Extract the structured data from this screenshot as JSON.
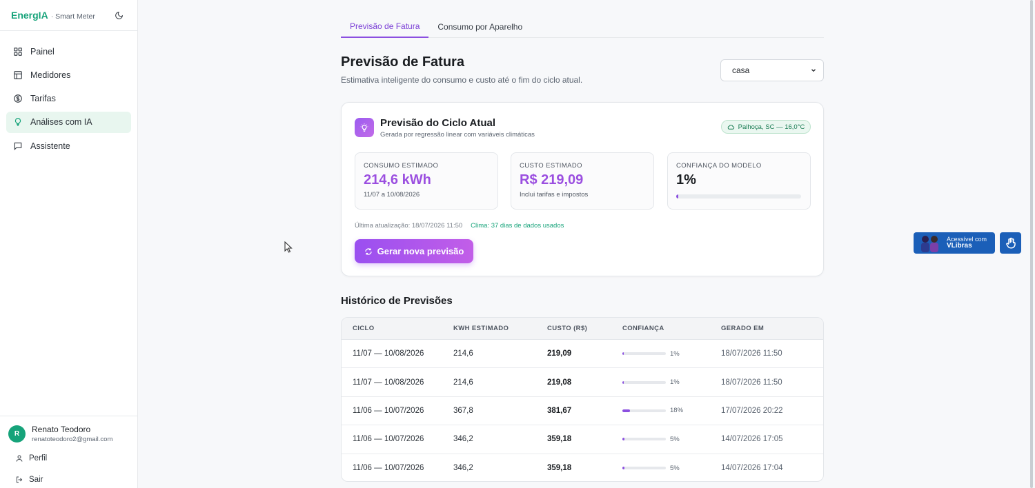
{
  "sidebar": {
    "brand": "EnergIA",
    "brand_sub": "· Smart Meter",
    "items": [
      {
        "label": "Painel",
        "icon": "grid-icon"
      },
      {
        "label": "Medidores",
        "icon": "table-icon"
      },
      {
        "label": "Tarifas",
        "icon": "dollar-circle-icon"
      },
      {
        "label": "Análises com IA",
        "icon": "lightbulb-icon",
        "active": true
      },
      {
        "label": "Assistente",
        "icon": "chat-icon"
      }
    ],
    "user": {
      "initial": "R",
      "name": "Renato Teodoro",
      "email": "renatoteodoro2@gmail.com"
    },
    "profile_label": "Perfil",
    "logout_label": "Sair"
  },
  "tabs": [
    {
      "label": "Previsão de Fatura",
      "active": true
    },
    {
      "label": "Consumo por Aparelho",
      "active": false
    }
  ],
  "header": {
    "title": "Previsão de Fatura",
    "subtitle": "Estimativa inteligente do consumo e custo até o fim do ciclo atual.",
    "select_value": "casa"
  },
  "forecast": {
    "title": "Previsão do Ciclo Atual",
    "subtitle": "Gerada por regressão linear com variáveis climáticas",
    "weather": "Palhoça, SC — 16,0°C",
    "consumo": {
      "label": "CONSUMO ESTIMADO",
      "value": "214,6 kWh",
      "note": "11/07 a 10/08/2026"
    },
    "custo": {
      "label": "CUSTO ESTIMADO",
      "value": "R$ 219,09",
      "note": "Inclui tarifas e impostos"
    },
    "confianca": {
      "label": "CONFIANÇA DO MODELO",
      "value": "1%",
      "percent": 1
    },
    "last_update": "Última atualização: 18/07/2026 11:50",
    "clima": "Clima: 37 dias de dados usados",
    "button": "Gerar nova previsão"
  },
  "history": {
    "title": "Histórico de Previsões",
    "headers": [
      "CICLO",
      "KWH ESTIMADO",
      "CUSTO (R$)",
      "CONFIANÇA",
      "GERADO EM"
    ],
    "rows": [
      {
        "ciclo": "11/07 — 10/08/2026",
        "kwh": "214,6",
        "custo": "219,09",
        "conf": "1%",
        "conf_pct": 1,
        "gerado": "18/07/2026 11:50"
      },
      {
        "ciclo": "11/07 — 10/08/2026",
        "kwh": "214,6",
        "custo": "219,08",
        "conf": "1%",
        "conf_pct": 1,
        "gerado": "18/07/2026 11:50"
      },
      {
        "ciclo": "11/06 — 10/07/2026",
        "kwh": "367,8",
        "custo": "381,67",
        "conf": "18%",
        "conf_pct": 18,
        "gerado": "17/07/2026 20:22"
      },
      {
        "ciclo": "11/06 — 10/07/2026",
        "kwh": "346,2",
        "custo": "359,18",
        "conf": "5%",
        "conf_pct": 5,
        "gerado": "14/07/2026 17:05"
      },
      {
        "ciclo": "11/06 — 10/07/2026",
        "kwh": "346,2",
        "custo": "359,18",
        "conf": "5%",
        "conf_pct": 5,
        "gerado": "14/07/2026 17:04"
      }
    ]
  },
  "vlibras": {
    "small": "Acessível com",
    "brand": "VLibras"
  },
  "colors": {
    "brand_green": "#16a37a",
    "accent_purple": "#8b4fe0",
    "active_nav_bg": "#e8f6ef",
    "vlibras_blue": "#1b5fb8"
  }
}
